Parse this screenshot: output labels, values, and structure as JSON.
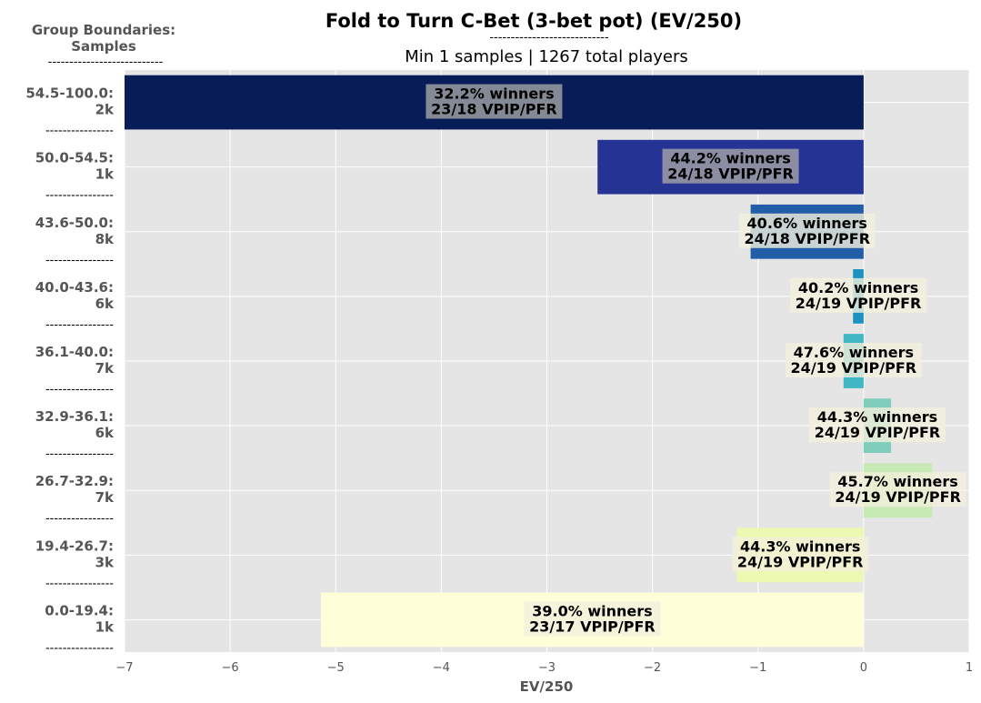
{
  "chart_data": {
    "type": "bar",
    "orientation": "horizontal",
    "title": "Fold to Turn C-Bet (3-bet pot) (EV/250)",
    "title_underline": "----------------------------",
    "subtitle": "Min 1 samples | 1267 total players",
    "y_header": {
      "line1": "Group Boundaries:",
      "line2": "Samples",
      "line3": "---------------------------"
    },
    "group_separator": "----------------",
    "xlabel": "EV/250",
    "xlim": [
      -7,
      1
    ],
    "xticks": [
      "−7",
      "−6",
      "−5",
      "−4",
      "−3",
      "−2",
      "−1",
      "0",
      "1"
    ],
    "grid": true,
    "bars": [
      {
        "range": "54.5-100.0:",
        "samples": "2k",
        "value": -7.0,
        "winners": "32.2% winners",
        "vpip": "23/18 VPIP/PFR",
        "color": "#081d58"
      },
      {
        "range": "50.0-54.5:",
        "samples": "1k",
        "value": -2.52,
        "winners": "44.2% winners",
        "vpip": "24/18 VPIP/PFR",
        "color": "#253494"
      },
      {
        "range": "43.6-50.0:",
        "samples": "8k",
        "value": -1.07,
        "winners": "40.6% winners",
        "vpip": "24/18 VPIP/PFR",
        "color": "#225ea8"
      },
      {
        "range": "40.0-43.6:",
        "samples": "6k",
        "value": -0.1,
        "winners": "40.2% winners",
        "vpip": "24/19 VPIP/PFR",
        "color": "#1d91c0"
      },
      {
        "range": "36.1-40.0:",
        "samples": "7k",
        "value": -0.19,
        "winners": "47.6% winners",
        "vpip": "24/19 VPIP/PFR",
        "color": "#41b6c4"
      },
      {
        "range": "32.9-36.1:",
        "samples": "6k",
        "value": 0.26,
        "winners": "44.3% winners",
        "vpip": "24/19 VPIP/PFR",
        "color": "#7fcdbb"
      },
      {
        "range": "26.7-32.9:",
        "samples": "7k",
        "value": 0.65,
        "winners": "45.7% winners",
        "vpip": "24/19 VPIP/PFR",
        "color": "#c7e9b4"
      },
      {
        "range": "19.4-26.7:",
        "samples": "3k",
        "value": -1.2,
        "winners": "44.3% winners",
        "vpip": "24/19 VPIP/PFR",
        "color": "#edf8b1"
      },
      {
        "range": "0.0-19.4:",
        "samples": "1k",
        "value": -5.14,
        "winners": "39.0% winners",
        "vpip": "23/17 VPIP/PFR",
        "color": "#ffffd9"
      }
    ]
  }
}
